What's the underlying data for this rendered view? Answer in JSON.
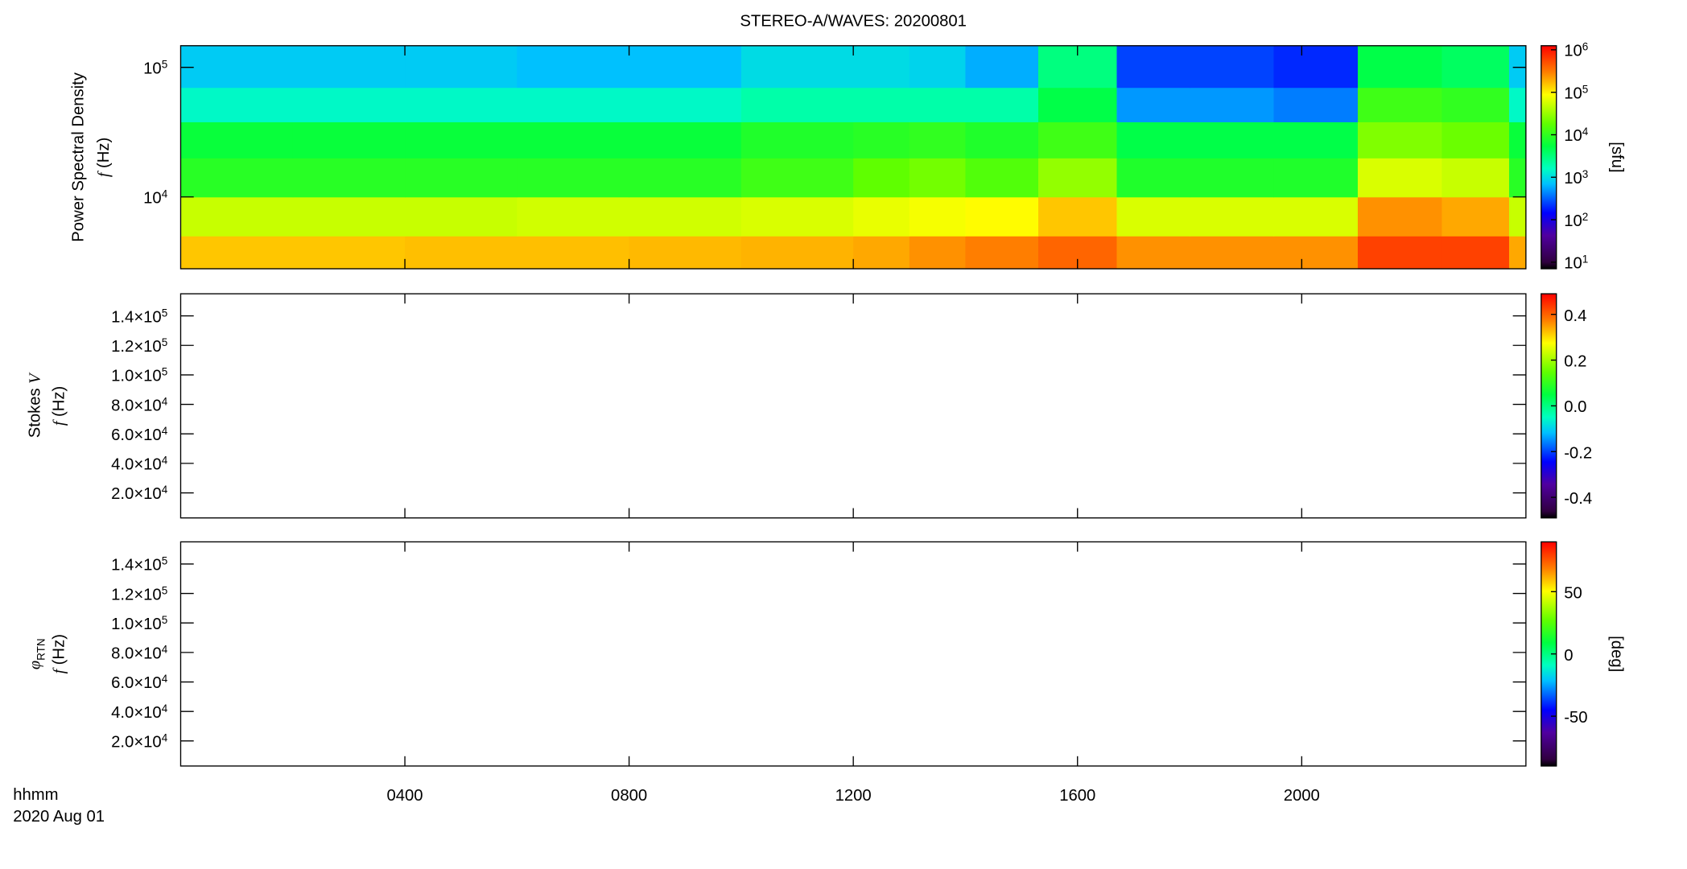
{
  "chart_data": [
    {
      "type": "spectrogram",
      "title": "STEREO-A/WAVES: 20200801",
      "ylabel": [
        [
          {
            "text": "Power Spectral Density"
          }
        ],
        [
          {
            "text": "f",
            "italic": true
          },
          {
            "text": "(Hz)"
          }
        ]
      ],
      "x": [
        0,
        2,
        4,
        6,
        8,
        10,
        12,
        13,
        14,
        15.3,
        16.7,
        18,
        19.5,
        21,
        22.5,
        23.7,
        24
      ],
      "y": [
        2790,
        5000,
        10000,
        20000,
        38000,
        70000,
        147000
      ],
      "values": [
        [
          150000,
          150000,
          160000,
          160000,
          170000,
          180000,
          200000,
          250000,
          300000,
          400000,
          250000,
          250000,
          250000,
          600000,
          600000,
          200000
        ],
        [
          50000,
          50000,
          50000,
          55000,
          55000,
          60000,
          70000,
          80000,
          90000,
          150000,
          60000,
          60000,
          60000,
          250000,
          200000,
          50000
        ],
        [
          9000,
          9000,
          9000,
          9000,
          9000,
          12000,
          18000,
          22000,
          15000,
          30000,
          8000,
          8000,
          8000,
          60000,
          50000,
          9000
        ],
        [
          6000,
          6000,
          6000,
          6000,
          6000,
          8000,
          9000,
          10000,
          8000,
          12000,
          5000,
          5000,
          5000,
          25000,
          20000,
          6000
        ],
        [
          1500,
          1500,
          1500,
          1500,
          1500,
          2000,
          2000,
          2000,
          2000,
          5000,
          500,
          500,
          400,
          12000,
          10000,
          1500
        ],
        [
          800,
          800,
          800,
          700,
          700,
          1000,
          1000,
          900,
          600,
          3000,
          250,
          250,
          200,
          5000,
          4000,
          800
        ]
      ],
      "xlim": [
        0,
        24
      ],
      "xticks": [
        4,
        8,
        12,
        16,
        20
      ],
      "ylim": [
        2790,
        147000
      ],
      "yscale": "log",
      "yticks": [
        {
          "value": 10000,
          "label": "10",
          "sup": "4"
        },
        {
          "value": 100000,
          "label": "10",
          "sup": "5"
        }
      ],
      "zlim": [
        7,
        1250000
      ],
      "zscale": "log",
      "zticks": [
        {
          "value": 10,
          "label": "10",
          "sup": "1"
        },
        {
          "value": 100,
          "label": "10",
          "sup": "2"
        },
        {
          "value": 1000,
          "label": "10",
          "sup": "3"
        },
        {
          "value": 10000,
          "label": "10",
          "sup": "4"
        },
        {
          "value": 100000,
          "label": "10",
          "sup": "5"
        },
        {
          "value": 1000000,
          "label": "10",
          "sup": "6"
        }
      ],
      "zlabel": "[sfu]",
      "colormap": [
        {
          "at": 0,
          "color": "#000000"
        },
        {
          "at": 0.03,
          "color": "#300040"
        },
        {
          "at": 0.15,
          "color": "#5000a0"
        },
        {
          "at": 0.25,
          "color": "#0000ff"
        },
        {
          "at": 0.38,
          "color": "#00c0ff"
        },
        {
          "at": 0.45,
          "color": "#00ffc0"
        },
        {
          "at": 0.55,
          "color": "#00ff40"
        },
        {
          "at": 0.65,
          "color": "#60ff00"
        },
        {
          "at": 0.78,
          "color": "#ffff00"
        },
        {
          "at": 0.88,
          "color": "#ff8000"
        },
        {
          "at": 1,
          "color": "#ff0000"
        }
      ]
    },
    {
      "type": "spectrogram",
      "ylabel": [
        [
          {
            "text": "Stokes"
          },
          {
            "text": "V",
            "italic": true
          }
        ],
        [
          {
            "text": "f",
            "italic": true
          },
          {
            "text": "(Hz)"
          }
        ]
      ],
      "xlim": [
        0,
        24
      ],
      "xticks": [
        4,
        8,
        12,
        16,
        20
      ],
      "ylim": [
        3000,
        155000
      ],
      "yticks": [
        {
          "value": 20000,
          "label": "2.0×10",
          "sup": "4"
        },
        {
          "value": 40000,
          "label": "4.0×10",
          "sup": "4"
        },
        {
          "value": 60000,
          "label": "6.0×10",
          "sup": "4"
        },
        {
          "value": 80000,
          "label": "8.0×10",
          "sup": "4"
        },
        {
          "value": 100000,
          "label": "1.0×10",
          "sup": "5"
        },
        {
          "value": 120000,
          "label": "1.2×10",
          "sup": "5"
        },
        {
          "value": 140000,
          "label": "1.4×10",
          "sup": "5"
        }
      ],
      "zlim": [
        -0.49,
        0.49
      ],
      "zticks": [
        -0.4,
        -0.2,
        {
          "value": 0,
          "label": "0.0"
        },
        0.2,
        0.4
      ],
      "colormap": [
        {
          "at": 0,
          "color": "#000000"
        },
        {
          "at": 0.03,
          "color": "#300040"
        },
        {
          "at": 0.15,
          "color": "#5000a0"
        },
        {
          "at": 0.25,
          "color": "#0000ff"
        },
        {
          "at": 0.38,
          "color": "#00c0ff"
        },
        {
          "at": 0.45,
          "color": "#00ffc0"
        },
        {
          "at": 0.55,
          "color": "#00ff40"
        },
        {
          "at": 0.65,
          "color": "#60ff00"
        },
        {
          "at": 0.78,
          "color": "#ffff00"
        },
        {
          "at": 0.88,
          "color": "#ff8000"
        },
        {
          "at": 1,
          "color": "#ff0000"
        }
      ]
    },
    {
      "type": "spectrogram",
      "ylabel": [
        [
          {
            "text": "φ",
            "italic": true
          },
          {
            "text": "RTN",
            "sub": true
          }
        ],
        [
          {
            "text": "f",
            "italic": true
          },
          {
            "text": "(Hz)"
          }
        ]
      ],
      "xlabel": [
        "hhmm",
        "2020 Aug 01"
      ],
      "xlim": [
        0,
        24
      ],
      "xticks": [
        {
          "value": 4,
          "label": "0400"
        },
        {
          "value": 8,
          "label": "0800"
        },
        {
          "value": 12,
          "label": "1200"
        },
        {
          "value": 16,
          "label": "1600"
        },
        {
          "value": 20,
          "label": "2000"
        }
      ],
      "ylim": [
        3000,
        155000
      ],
      "yticks": [
        {
          "value": 20000,
          "label": "2.0×10",
          "sup": "4"
        },
        {
          "value": 40000,
          "label": "4.0×10",
          "sup": "4"
        },
        {
          "value": 60000,
          "label": "6.0×10",
          "sup": "4"
        },
        {
          "value": 80000,
          "label": "8.0×10",
          "sup": "4"
        },
        {
          "value": 100000,
          "label": "1.0×10",
          "sup": "5"
        },
        {
          "value": 120000,
          "label": "1.2×10",
          "sup": "5"
        },
        {
          "value": 140000,
          "label": "1.4×10",
          "sup": "5"
        }
      ],
      "zlim": [
        -90,
        90
      ],
      "zticks": [
        -50,
        0,
        50
      ],
      "zlabel": "[deg]",
      "colormap": [
        {
          "at": 0,
          "color": "#000000"
        },
        {
          "at": 0.03,
          "color": "#300040"
        },
        {
          "at": 0.15,
          "color": "#5000a0"
        },
        {
          "at": 0.25,
          "color": "#0000ff"
        },
        {
          "at": 0.38,
          "color": "#00c0ff"
        },
        {
          "at": 0.45,
          "color": "#00ffc0"
        },
        {
          "at": 0.55,
          "color": "#00ff40"
        },
        {
          "at": 0.65,
          "color": "#60ff00"
        },
        {
          "at": 0.78,
          "color": "#ffff00"
        },
        {
          "at": 0.88,
          "color": "#ff8000"
        },
        {
          "at": 1,
          "color": "#ff0000"
        }
      ]
    }
  ]
}
